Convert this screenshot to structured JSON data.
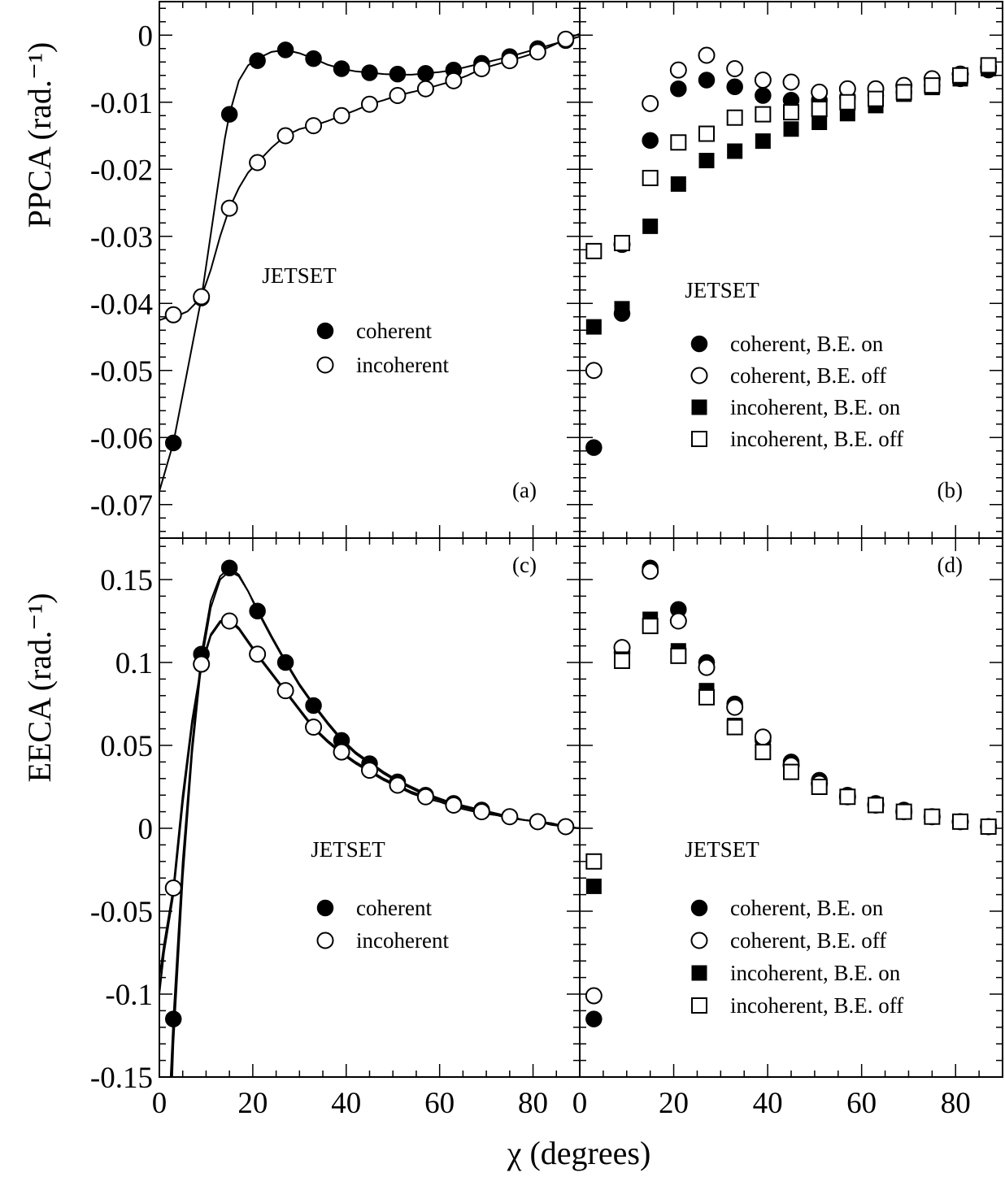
{
  "figure": {
    "xlabel": "χ (degrees)",
    "ylabel_top": "PPCA (rad.⁻¹)",
    "ylabel_bottom": "EECA (rad.⁻¹)"
  },
  "chart_data": [
    {
      "panel": "(a)",
      "type": "scatter",
      "annotation": "JETSET",
      "ylabel": "PPCA (rad.⁻¹)",
      "xlabel": "χ (degrees)",
      "xlim": [
        0,
        90
      ],
      "ylim": [
        -0.075,
        0.005
      ],
      "yticks": [
        0,
        -0.01,
        -0.02,
        -0.03,
        -0.04,
        -0.05,
        -0.06,
        -0.07
      ],
      "ytick_labels": [
        "0",
        "-0.01",
        "-0.02",
        "-0.03",
        "-0.04",
        "-0.05",
        "-0.06",
        "-0.07"
      ],
      "legend_position": "center",
      "series": [
        {
          "name": "coherent",
          "marker": "filled-circle",
          "x": [
            3,
            9,
            15,
            21,
            27,
            33,
            39,
            45,
            51,
            57,
            63,
            69,
            75,
            81,
            87
          ],
          "y": [
            -0.0608,
            -0.0392,
            -0.0118,
            -0.0038,
            -0.0022,
            -0.0035,
            -0.005,
            -0.0056,
            -0.0058,
            -0.0057,
            -0.0052,
            -0.0042,
            -0.0032,
            -0.002,
            -0.0008
          ]
        },
        {
          "name": "incoherent",
          "marker": "open-circle",
          "x": [
            3,
            9,
            15,
            21,
            27,
            33,
            39,
            45,
            51,
            57,
            63,
            69,
            75,
            81,
            87
          ],
          "y": [
            -0.0417,
            -0.039,
            -0.0258,
            -0.019,
            -0.015,
            -0.0135,
            -0.012,
            -0.0103,
            -0.009,
            -0.008,
            -0.0068,
            -0.005,
            -0.0038,
            -0.0025,
            -0.0006
          ]
        }
      ],
      "fit_curves": [
        {
          "for": "coherent",
          "x": [
            0,
            3,
            6,
            9,
            12,
            14,
            15,
            17,
            19,
            21,
            24,
            27,
            30,
            33,
            36,
            39,
            42,
            45,
            48,
            51,
            54,
            57,
            60,
            63,
            66,
            69,
            72,
            75,
            78,
            81,
            84,
            87,
            90
          ],
          "y": [
            -0.068,
            -0.0608,
            -0.05,
            -0.0392,
            -0.025,
            -0.0155,
            -0.0118,
            -0.0068,
            -0.0045,
            -0.0035,
            -0.0025,
            -0.0022,
            -0.0027,
            -0.0035,
            -0.0044,
            -0.005,
            -0.0054,
            -0.0056,
            -0.0058,
            -0.0059,
            -0.0059,
            -0.0057,
            -0.0055,
            -0.0052,
            -0.0047,
            -0.0042,
            -0.0037,
            -0.0032,
            -0.0026,
            -0.002,
            -0.0014,
            -0.0008,
            -0.0002
          ]
        },
        {
          "for": "incoherent",
          "x": [
            0,
            2,
            4,
            6,
            8,
            9,
            11,
            13,
            15,
            17,
            19,
            21,
            24,
            27,
            30,
            33,
            36,
            39,
            42,
            45,
            48,
            51,
            54,
            57,
            60,
            63,
            66,
            69,
            72,
            75,
            78,
            81,
            84,
            87,
            90
          ],
          "y": [
            -0.0425,
            -0.042,
            -0.0418,
            -0.0412,
            -0.0398,
            -0.039,
            -0.035,
            -0.03,
            -0.0258,
            -0.0228,
            -0.0205,
            -0.019,
            -0.0168,
            -0.015,
            -0.014,
            -0.0135,
            -0.0128,
            -0.012,
            -0.0112,
            -0.0103,
            -0.0097,
            -0.009,
            -0.0085,
            -0.008,
            -0.0074,
            -0.0068,
            -0.006,
            -0.005,
            -0.0044,
            -0.0038,
            -0.0032,
            -0.0025,
            -0.0016,
            -0.0006,
            0.0002
          ]
        }
      ]
    },
    {
      "panel": "(b)",
      "type": "scatter",
      "annotation": "JETSET",
      "xlim": [
        0,
        90
      ],
      "ylim": [
        -0.075,
        0.005
      ],
      "legend_position": "center",
      "series": [
        {
          "name": "coherent, B.E. on",
          "marker": "filled-circle",
          "x": [
            3,
            9,
            15,
            21,
            27,
            33,
            39,
            45,
            51,
            57,
            63,
            69,
            75,
            81,
            87
          ],
          "y": [
            -0.0615,
            -0.0415,
            -0.0157,
            -0.008,
            -0.0067,
            -0.0077,
            -0.009,
            -0.0097,
            -0.0097,
            -0.0093,
            -0.009,
            -0.0085,
            -0.0075,
            -0.0065,
            -0.0052
          ]
        },
        {
          "name": "coherent, B.E. off",
          "marker": "open-circle",
          "x": [
            3,
            9,
            15,
            21,
            27,
            33,
            39,
            45,
            51,
            57,
            63,
            69,
            75,
            81,
            87
          ],
          "y": [
            -0.05,
            -0.0312,
            -0.0102,
            -0.0052,
            -0.003,
            -0.005,
            -0.0067,
            -0.007,
            -0.0085,
            -0.008,
            -0.008,
            -0.0075,
            -0.0065,
            -0.0058,
            -0.0048
          ]
        },
        {
          "name": "incoherent, B.E. on",
          "marker": "filled-square",
          "x": [
            3,
            9,
            15,
            21,
            27,
            33,
            39,
            45,
            51,
            57,
            63,
            69,
            75,
            81,
            87
          ],
          "y": [
            -0.0435,
            -0.0408,
            -0.0285,
            -0.0222,
            -0.0187,
            -0.0173,
            -0.0158,
            -0.014,
            -0.013,
            -0.0117,
            -0.0105,
            -0.0088,
            -0.0078,
            -0.0065,
            -0.005
          ]
        },
        {
          "name": "incoherent, B.E. off",
          "marker": "open-square",
          "x": [
            3,
            9,
            15,
            21,
            27,
            33,
            39,
            45,
            51,
            57,
            63,
            69,
            75,
            81,
            87
          ],
          "y": [
            -0.0322,
            -0.031,
            -0.0213,
            -0.016,
            -0.0147,
            -0.0123,
            -0.0118,
            -0.0115,
            -0.011,
            -0.01,
            -0.0095,
            -0.0085,
            -0.0075,
            -0.006,
            -0.0045
          ]
        }
      ]
    },
    {
      "panel": "(c)",
      "type": "scatter",
      "annotation": "JETSET",
      "ylabel": "EECA (rad.⁻¹)",
      "xlabel": "χ (degrees)",
      "xlim": [
        0,
        90
      ],
      "ylim": [
        -0.15,
        0.175
      ],
      "yticks": [
        0.15,
        0.1,
        0.05,
        0,
        -0.05,
        -0.1,
        -0.15
      ],
      "ytick_labels": [
        "0.15",
        "0.1",
        "0.05",
        "0",
        "-0.05",
        "-0.1",
        "-0.15"
      ],
      "xticks": [
        0,
        20,
        40,
        60,
        80
      ],
      "xtick_labels": [
        "0",
        "20",
        "40",
        "60",
        "80"
      ],
      "legend_position": "lower-center",
      "series": [
        {
          "name": "coherent",
          "marker": "filled-circle",
          "x": [
            3,
            9,
            15,
            21,
            27,
            33,
            39,
            45,
            51,
            57,
            63,
            69,
            75,
            81,
            87
          ],
          "y": [
            -0.115,
            0.105,
            0.157,
            0.131,
            0.1,
            0.074,
            0.053,
            0.039,
            0.028,
            0.02,
            0.015,
            0.011,
            0.007,
            0.004,
            0.001
          ]
        },
        {
          "name": "incoherent",
          "marker": "open-circle",
          "x": [
            3,
            9,
            15,
            21,
            27,
            33,
            39,
            45,
            51,
            57,
            63,
            69,
            75,
            81,
            87
          ],
          "y": [
            -0.036,
            0.099,
            0.125,
            0.105,
            0.083,
            0.061,
            0.046,
            0.035,
            0.026,
            0.019,
            0.014,
            0.01,
            0.007,
            0.004,
            0.001
          ]
        }
      ],
      "fit_curves": [
        {
          "for": "coherent",
          "x": [
            1,
            2,
            3,
            5,
            7,
            9,
            11,
            13,
            15,
            17,
            19,
            21,
            24,
            27,
            30,
            33,
            36,
            39,
            42,
            45,
            48,
            51,
            54,
            57,
            60,
            63,
            66,
            69,
            72,
            75,
            78,
            81,
            84,
            87,
            90
          ],
          "y": [
            -0.21,
            -0.175,
            -0.115,
            -0.02,
            0.05,
            0.105,
            0.137,
            0.152,
            0.157,
            0.153,
            0.143,
            0.131,
            0.115,
            0.1,
            0.086,
            0.074,
            0.063,
            0.053,
            0.045,
            0.039,
            0.033,
            0.028,
            0.024,
            0.02,
            0.017,
            0.015,
            0.013,
            0.011,
            0.009,
            0.007,
            0.005,
            0.004,
            0.003,
            0.001,
            0.0
          ]
        },
        {
          "for": "coherent-alt",
          "x": [
            2,
            3,
            5,
            7,
            9,
            11,
            13,
            15,
            17,
            19,
            21,
            24,
            27,
            30,
            33,
            36,
            39,
            42,
            45,
            48,
            51,
            54,
            57,
            60,
            63,
            66,
            69,
            72,
            75,
            78,
            81,
            84,
            87,
            90
          ],
          "y": [
            -0.21,
            -0.13,
            -0.03,
            0.045,
            0.1,
            0.133,
            0.15,
            0.155,
            0.152,
            0.143,
            0.132,
            0.116,
            0.101,
            0.087,
            0.075,
            0.064,
            0.054,
            0.046,
            0.04,
            0.034,
            0.029,
            0.025,
            0.021,
            0.018,
            0.015,
            0.013,
            0.011,
            0.009,
            0.007,
            0.005,
            0.004,
            0.003,
            0.001,
            0.0
          ]
        },
        {
          "for": "incoherent",
          "x": [
            0,
            1,
            3,
            5,
            7,
            9,
            11,
            13,
            15,
            17,
            19,
            21,
            24,
            27,
            30,
            33,
            36,
            39,
            42,
            45,
            48,
            51,
            54,
            57,
            60,
            63,
            66,
            69,
            72,
            75,
            78,
            81,
            84,
            87,
            90
          ],
          "y": [
            -0.09,
            -0.07,
            -0.036,
            0.02,
            0.065,
            0.099,
            0.117,
            0.125,
            0.126,
            0.121,
            0.113,
            0.105,
            0.094,
            0.083,
            0.072,
            0.061,
            0.053,
            0.046,
            0.04,
            0.035,
            0.03,
            0.026,
            0.022,
            0.019,
            0.017,
            0.014,
            0.012,
            0.01,
            0.008,
            0.007,
            0.005,
            0.004,
            0.003,
            0.001,
            0.0
          ]
        },
        {
          "for": "incoherent-alt",
          "x": [
            0,
            1,
            3,
            5,
            7,
            9,
            11,
            13,
            15,
            17,
            19,
            21,
            24,
            27,
            30,
            33,
            36,
            39,
            42,
            45,
            48,
            51,
            54,
            57,
            60,
            63,
            66,
            69,
            72,
            75,
            78,
            81,
            84,
            87,
            90
          ],
          "y": [
            -0.1,
            -0.075,
            -0.04,
            0.015,
            0.062,
            0.097,
            0.116,
            0.124,
            0.125,
            0.12,
            0.112,
            0.104,
            0.093,
            0.082,
            0.071,
            0.06,
            0.052,
            0.045,
            0.039,
            0.034,
            0.029,
            0.025,
            0.021,
            0.018,
            0.016,
            0.013,
            0.011,
            0.009,
            0.008,
            0.006,
            0.005,
            0.004,
            0.002,
            0.001,
            0.0
          ]
        }
      ]
    },
    {
      "panel": "(d)",
      "type": "scatter",
      "annotation": "JETSET",
      "xlim": [
        0,
        90
      ],
      "ylim": [
        -0.15,
        0.175
      ],
      "xticks": [
        0,
        20,
        40,
        60,
        80
      ],
      "xtick_labels": [
        "0",
        "20",
        "40",
        "60",
        "80"
      ],
      "legend_position": "lower-center",
      "series": [
        {
          "name": "coherent, B.E. on",
          "marker": "filled-circle",
          "x": [
            3,
            9,
            15,
            21,
            27,
            33,
            39,
            45,
            51,
            57,
            63,
            69,
            75,
            81,
            87
          ],
          "y": [
            -0.115,
            0.106,
            0.157,
            0.132,
            0.1,
            0.075,
            0.053,
            0.04,
            0.029,
            0.02,
            0.015,
            0.011,
            0.007,
            0.004,
            0.001
          ]
        },
        {
          "name": "coherent, B.E. off",
          "marker": "open-circle",
          "x": [
            3,
            9,
            15,
            21,
            27,
            33,
            39,
            45,
            51,
            57,
            63,
            69,
            75,
            81,
            87
          ],
          "y": [
            -0.101,
            0.109,
            0.155,
            0.125,
            0.097,
            0.073,
            0.055,
            0.038,
            0.027,
            0.019,
            0.014,
            0.01,
            0.007,
            0.004,
            0.001
          ]
        },
        {
          "name": "incoherent, B.E. on",
          "marker": "filled-square",
          "x": [
            3,
            9,
            15,
            21,
            27,
            33,
            39,
            45,
            51,
            57,
            63,
            69,
            75,
            81,
            87
          ],
          "y": [
            -0.035,
            0.102,
            0.126,
            0.107,
            0.083,
            0.062,
            0.046,
            0.034,
            0.025,
            0.019,
            0.014,
            0.01,
            0.007,
            0.004,
            0.001
          ]
        },
        {
          "name": "incoherent, B.E. off",
          "marker": "open-square",
          "x": [
            3,
            9,
            15,
            21,
            27,
            33,
            39,
            45,
            51,
            57,
            63,
            69,
            75,
            81,
            87
          ],
          "y": [
            -0.02,
            0.101,
            0.122,
            0.104,
            0.079,
            0.061,
            0.046,
            0.034,
            0.025,
            0.019,
            0.014,
            0.01,
            0.007,
            0.004,
            0.001
          ]
        }
      ]
    }
  ]
}
